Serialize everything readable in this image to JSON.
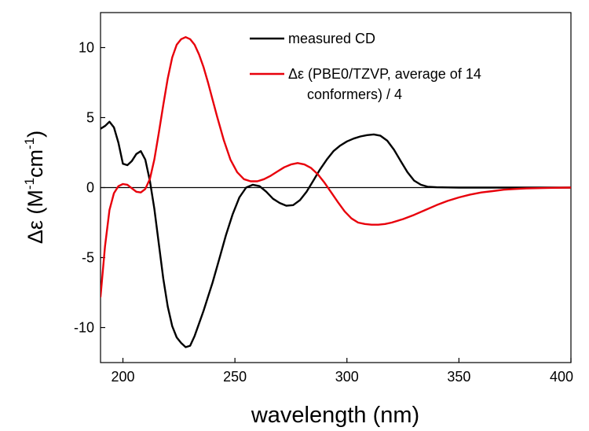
{
  "chart_data": {
    "type": "line",
    "title": "",
    "xlabel": "wavelength (nm)",
    "ylabel": {
      "base": "Δε (M",
      "sup1": "-1",
      "mid": "cm",
      "sup2": "-1",
      "end": ")"
    },
    "xlim": [
      190,
      400
    ],
    "ylim": [
      -12.5,
      12.5
    ],
    "x_ticks": [
      200,
      250,
      300,
      350,
      400
    ],
    "y_ticks": [
      -10,
      -5,
      0,
      5,
      10
    ],
    "x_tick_labels": [
      "200",
      "250",
      "300",
      "350",
      "400"
    ],
    "y_tick_labels": [
      "-10",
      "-5",
      "0",
      "5",
      "10"
    ],
    "zero_line": true,
    "grid": false,
    "legend_position": "top-right",
    "series": [
      {
        "name": "measured CD",
        "color": "#000000",
        "x": [
          190,
          192,
          194,
          196,
          198,
          200,
          202,
          204,
          206,
          208,
          210,
          212,
          214,
          216,
          218,
          220,
          222,
          224,
          226,
          228,
          230,
          232,
          234,
          236,
          238,
          240,
          243,
          246,
          249,
          252,
          255,
          258,
          261,
          264,
          267,
          270,
          273,
          276,
          279,
          282,
          285,
          288,
          291,
          294,
          297,
          300,
          303,
          306,
          309,
          312,
          315,
          318,
          321,
          324,
          327,
          330,
          333,
          336,
          340,
          345,
          350,
          355,
          360,
          370,
          380,
          390,
          400
        ],
        "values": [
          4.2,
          4.4,
          4.7,
          4.3,
          3.2,
          1.7,
          1.6,
          1.9,
          2.4,
          2.6,
          2.0,
          0.5,
          -1.5,
          -4.0,
          -6.5,
          -8.5,
          -9.9,
          -10.7,
          -11.1,
          -11.4,
          -11.3,
          -10.6,
          -9.7,
          -8.8,
          -7.8,
          -6.8,
          -5.1,
          -3.4,
          -1.9,
          -0.7,
          0.0,
          0.2,
          0.1,
          -0.3,
          -0.8,
          -1.1,
          -1.3,
          -1.25,
          -0.9,
          -0.3,
          0.5,
          1.3,
          2.0,
          2.6,
          3.0,
          3.3,
          3.5,
          3.65,
          3.75,
          3.8,
          3.7,
          3.35,
          2.7,
          1.9,
          1.1,
          0.5,
          0.2,
          0.06,
          0.02,
          0.01,
          0.0,
          0.0,
          0.0,
          0.0,
          0.0,
          0.0,
          0.0
        ]
      },
      {
        "name": "Δε (PBE0/TZVP, average of 14 conformers) / 4",
        "legend_lines": [
          "Δε (PBE0/TZVP, average of 14",
          "conformers) / 4"
        ],
        "color": "#e8000b",
        "x": [
          190,
          192,
          194,
          196,
          198,
          200,
          202,
          204,
          206,
          208,
          210,
          212,
          214,
          216,
          218,
          220,
          222,
          224,
          226,
          228,
          230,
          232,
          234,
          236,
          238,
          240,
          242,
          245,
          248,
          251,
          254,
          257,
          260,
          263,
          266,
          269,
          272,
          275,
          278,
          281,
          284,
          287,
          290,
          293,
          296,
          299,
          302,
          305,
          308,
          311,
          314,
          317,
          320,
          325,
          330,
          335,
          340,
          345,
          350,
          355,
          360,
          365,
          370,
          375,
          380,
          390,
          400
        ],
        "values": [
          -7.8,
          -4.2,
          -1.6,
          -0.4,
          0.1,
          0.25,
          0.2,
          -0.05,
          -0.3,
          -0.35,
          -0.1,
          0.6,
          2.0,
          3.9,
          5.9,
          7.8,
          9.3,
          10.2,
          10.6,
          10.75,
          10.6,
          10.2,
          9.5,
          8.6,
          7.5,
          6.3,
          5.1,
          3.4,
          2.0,
          1.1,
          0.6,
          0.45,
          0.45,
          0.6,
          0.85,
          1.15,
          1.45,
          1.65,
          1.75,
          1.65,
          1.4,
          0.95,
          0.35,
          -0.35,
          -1.05,
          -1.7,
          -2.2,
          -2.5,
          -2.6,
          -2.65,
          -2.65,
          -2.6,
          -2.5,
          -2.25,
          -1.95,
          -1.6,
          -1.25,
          -0.95,
          -0.7,
          -0.5,
          -0.35,
          -0.25,
          -0.15,
          -0.1,
          -0.06,
          -0.02,
          0.0
        ]
      }
    ]
  }
}
